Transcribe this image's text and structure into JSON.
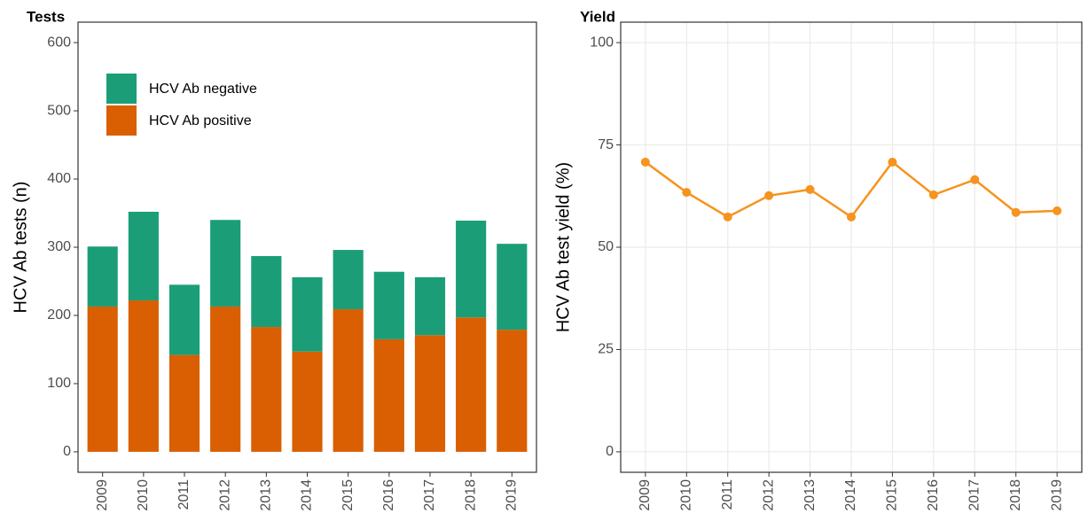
{
  "chart_data": [
    {
      "type": "bar",
      "stacked": true,
      "title": "Tests",
      "y_label": "HCV Ab tests (n)",
      "categories": [
        "2009",
        "2010",
        "2011",
        "2012",
        "2013",
        "2014",
        "2015",
        "2016",
        "2017",
        "2018",
        "2019"
      ],
      "series": [
        {
          "name": "HCV Ab positive",
          "color": "#d95f02",
          "values": [
            213,
            222,
            142,
            213,
            183,
            147,
            209,
            165,
            171,
            197,
            179
          ]
        },
        {
          "name": "HCV Ab negative",
          "color": "#1b9e77",
          "values": [
            88,
            130,
            103,
            127,
            104,
            109,
            87,
            99,
            85,
            142,
            126
          ]
        }
      ],
      "ylim": [
        -30,
        630
      ],
      "yticks": [
        0,
        100,
        200,
        300,
        400,
        500,
        600
      ],
      "grid": false,
      "legend": "top-left"
    },
    {
      "type": "line",
      "title": "Yield",
      "y_label": "HCV Ab test yield (%)",
      "categories": [
        "2009",
        "2010",
        "2011",
        "2012",
        "2013",
        "2014",
        "2015",
        "2016",
        "2017",
        "2018",
        "2019"
      ],
      "series": [
        {
          "name": "Yield",
          "color": "#f7931e",
          "values": [
            70.8,
            63.4,
            57.4,
            62.6,
            64.1,
            57.4,
            70.8,
            62.8,
            66.5,
            58.5,
            58.9
          ]
        }
      ],
      "ylim": [
        -5,
        105
      ],
      "yticks": [
        0,
        25,
        50,
        75,
        100
      ],
      "grid": true
    }
  ]
}
